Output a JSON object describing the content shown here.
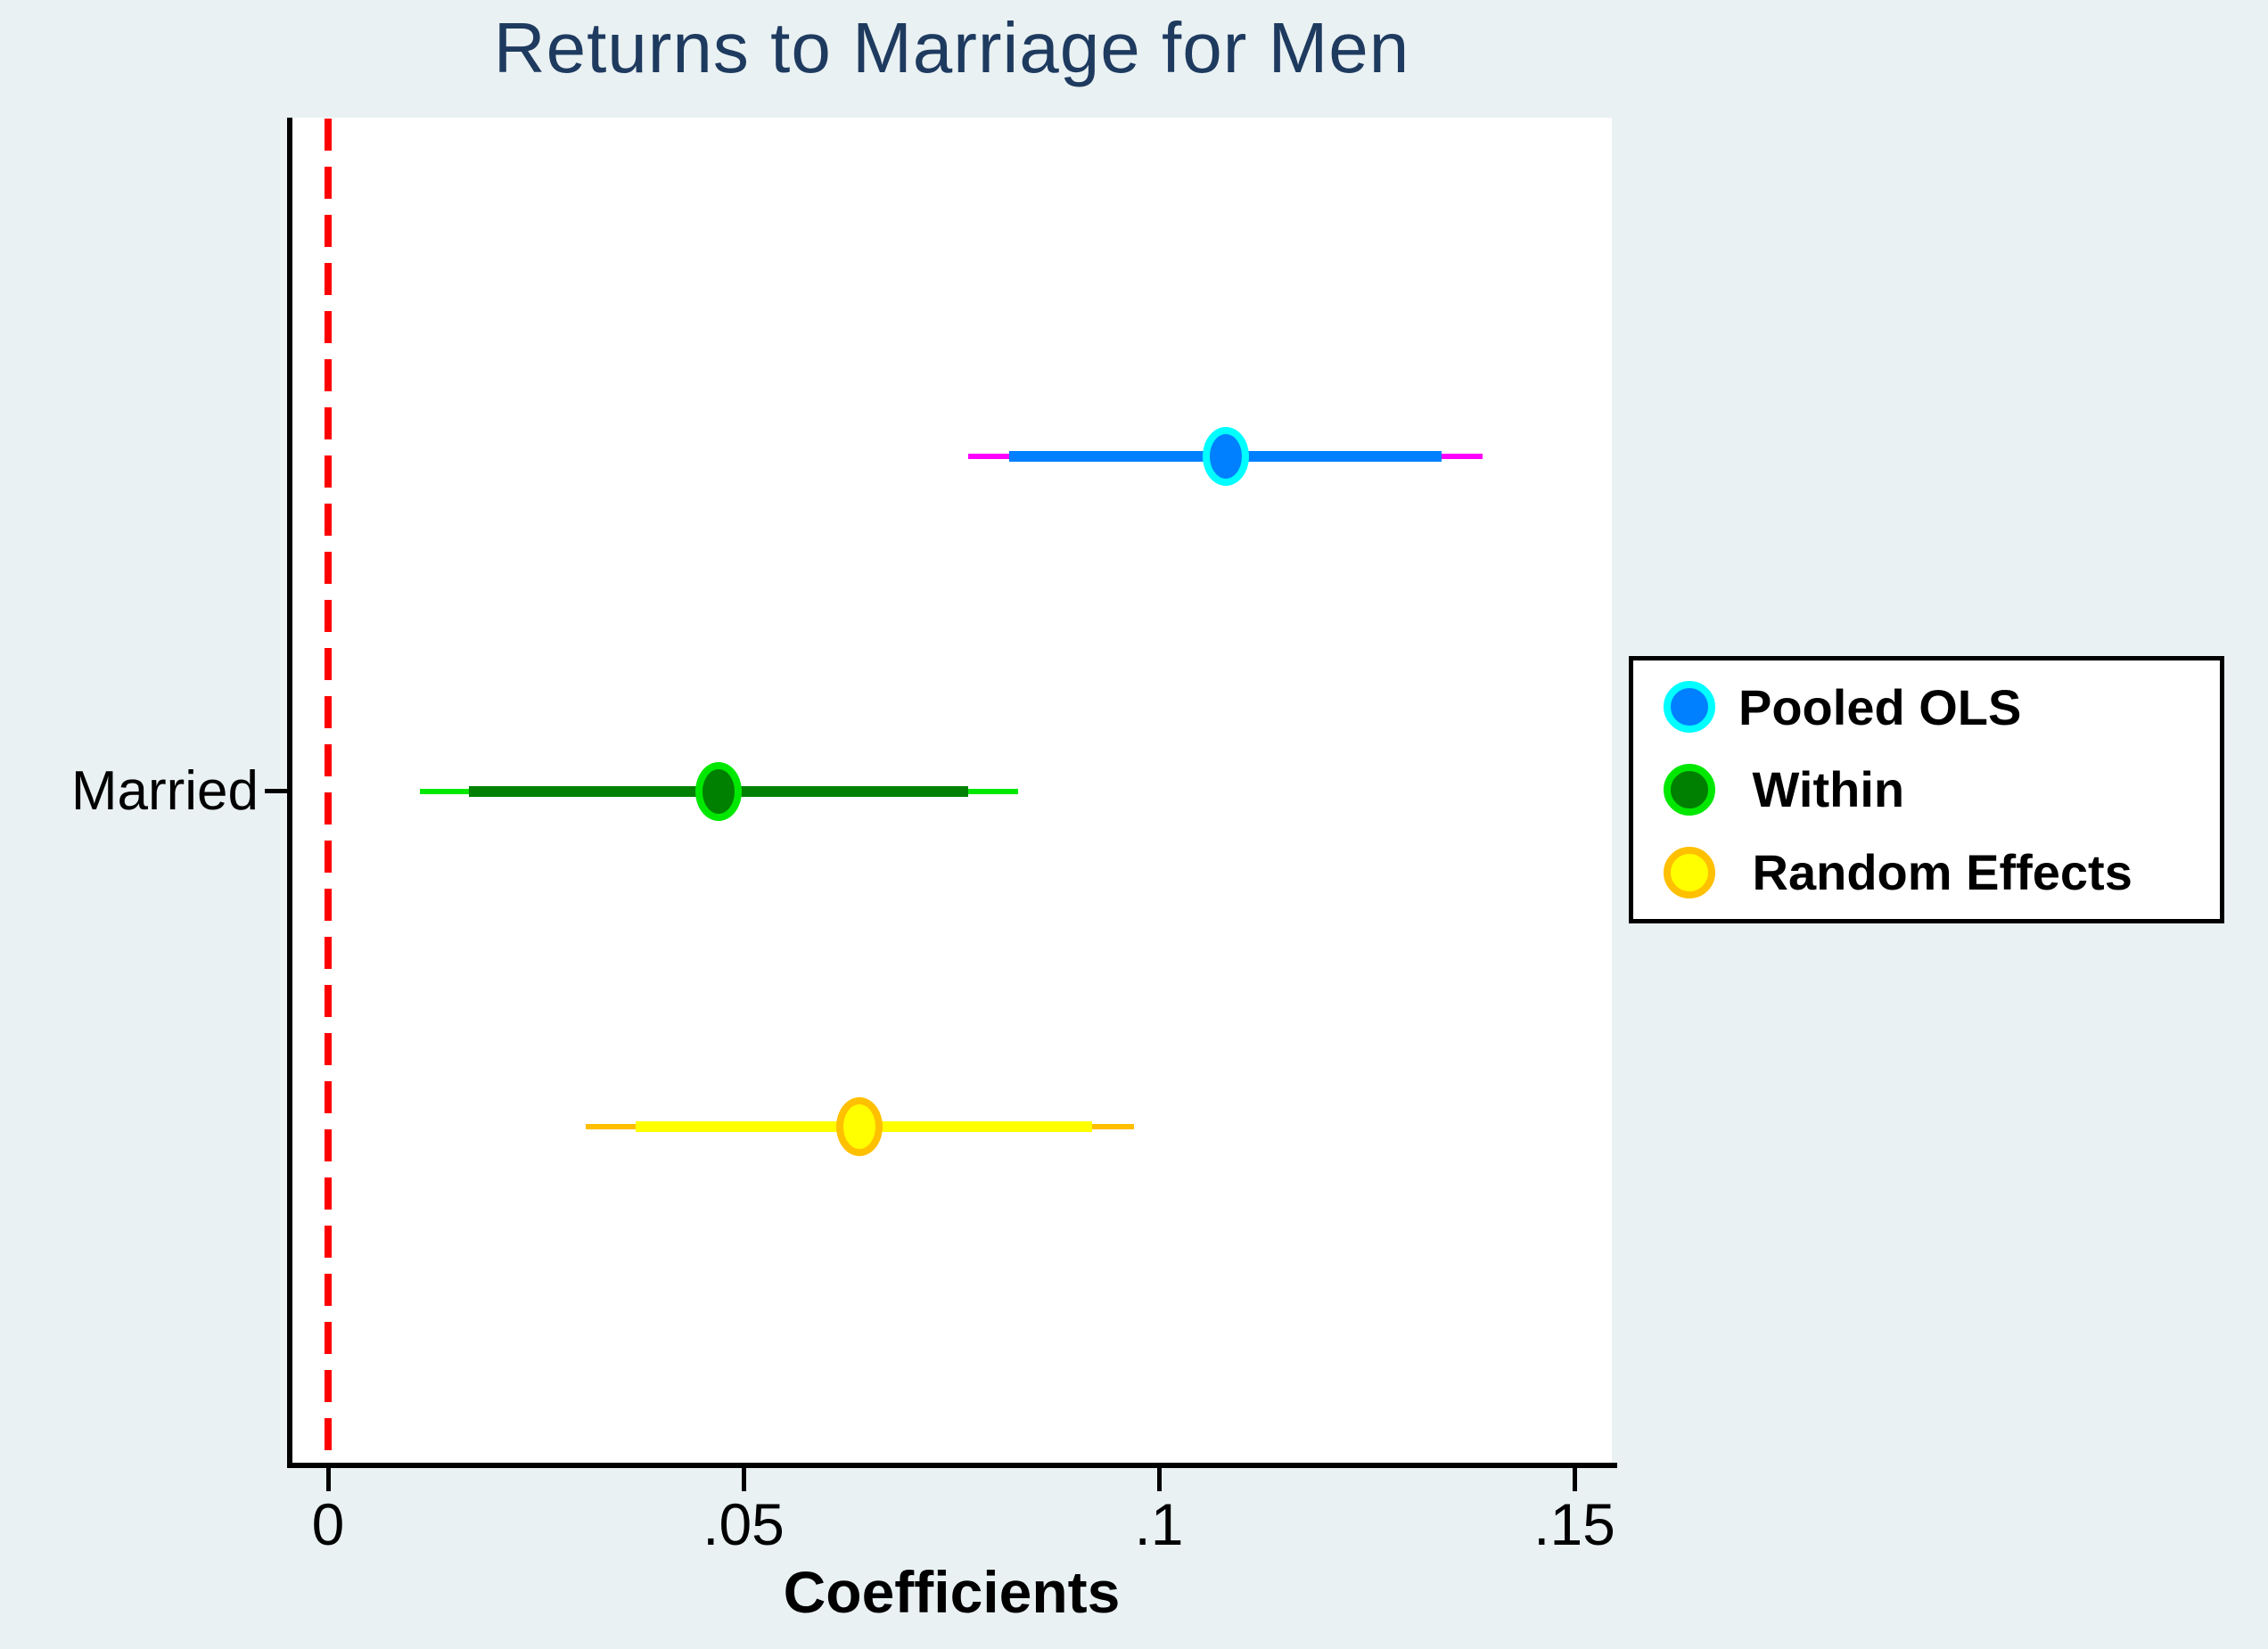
{
  "title": "Returns to Marriage for Men",
  "colors": {
    "page_background": "#e9f1f2",
    "plot_background": "#ffffff",
    "title_text": "#1e3a5f",
    "axis": "#000000",
    "reference_line": "#ff0000"
  },
  "chart_data": {
    "type": "scatter",
    "subtype": "coefficient-plot-with-confidence-intervals",
    "title": "Returns to Marriage for Men",
    "xlabel": "Coefficients",
    "category": "Married",
    "grid": false,
    "xaxis": {
      "range": [
        -0.0045,
        0.1545
      ],
      "ticks": [
        0,
        0.05,
        0.1,
        0.15
      ],
      "tick_labels": [
        "0",
        ".05",
        ".1",
        ".15"
      ]
    },
    "reference_line": {
      "x": 0,
      "color": "#ff0000",
      "style": "dashed"
    },
    "series": [
      {
        "name": "Pooled OLS",
        "coef": 0.108,
        "ci_inner": [
          0.082,
          0.134
        ],
        "ci_outer": [
          0.077,
          0.139
        ],
        "marker_fill": "#0080ff",
        "marker_ring": "#00ffff",
        "ci_inner_color": "#0080ff",
        "ci_outer_color": "#ff00ff"
      },
      {
        "name": "Within",
        "coef": 0.047,
        "ci_inner": [
          0.017,
          0.077
        ],
        "ci_outer": [
          0.011,
          0.083
        ],
        "marker_fill": "#008000",
        "marker_ring": "#00e800",
        "ci_inner_color": "#008000",
        "ci_outer_color": "#00e800"
      },
      {
        "name": "Random Effects",
        "coef": 0.064,
        "ci_inner": [
          0.037,
          0.092
        ],
        "ci_outer": [
          0.031,
          0.097
        ],
        "marker_fill": "#ffff00",
        "marker_ring": "#ffc000",
        "ci_inner_color": "#ffff00",
        "ci_outer_color": "#ffbf00"
      }
    ],
    "legend": {
      "position": "right",
      "entries": [
        "Pooled OLS",
        " Within",
        " Random Effects"
      ]
    }
  }
}
